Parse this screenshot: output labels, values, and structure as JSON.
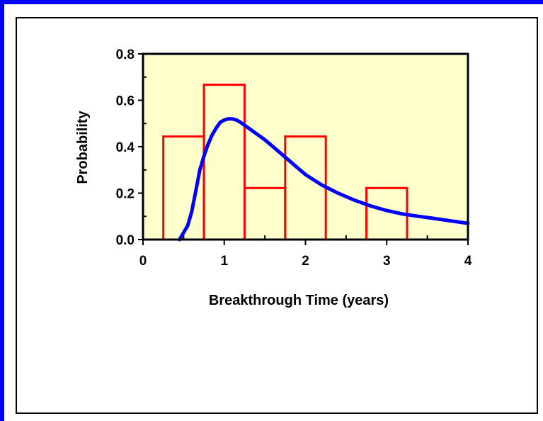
{
  "chart_data": {
    "type": "bar",
    "title": "",
    "xlabel": "Breakthrough Time (years)",
    "ylabel": "Probability",
    "xlim": [
      0,
      4
    ],
    "ylim": [
      0,
      0.8
    ],
    "x_ticks": [
      "0",
      "1",
      "2",
      "3",
      "4"
    ],
    "y_ticks": [
      "0.0",
      "0.2",
      "0.4",
      "0.6",
      "0.8"
    ],
    "grid": false,
    "legend": "none",
    "plot_background": "#ffffcc",
    "histogram": {
      "color": "#ff0000",
      "bins": [
        {
          "x0": 0.25,
          "x1": 0.75,
          "value": 0.444
        },
        {
          "x0": 0.75,
          "x1": 1.25,
          "value": 0.667
        },
        {
          "x0": 1.25,
          "x1": 1.75,
          "value": 0.222
        },
        {
          "x0": 1.75,
          "x1": 2.25,
          "value": 0.444
        },
        {
          "x0": 2.25,
          "x1": 2.75,
          "value": 0.0
        },
        {
          "x0": 2.75,
          "x1": 3.25,
          "value": 0.222
        }
      ]
    },
    "curve": {
      "color": "#0000ff",
      "x": [
        0.45,
        0.55,
        0.6,
        0.65,
        0.7,
        0.75,
        0.8,
        0.85,
        0.9,
        0.95,
        1.0,
        1.05,
        1.1,
        1.15,
        1.2,
        1.3,
        1.4,
        1.5,
        1.6,
        1.7,
        1.8,
        1.9,
        2.0,
        2.2,
        2.4,
        2.6,
        2.8,
        3.0,
        3.2,
        3.4,
        3.6,
        3.8,
        4.0
      ],
      "y": [
        0.0,
        0.06,
        0.12,
        0.21,
        0.3,
        0.36,
        0.41,
        0.45,
        0.48,
        0.505,
        0.515,
        0.52,
        0.52,
        0.515,
        0.505,
        0.48,
        0.455,
        0.43,
        0.4,
        0.37,
        0.34,
        0.31,
        0.28,
        0.235,
        0.2,
        0.17,
        0.145,
        0.125,
        0.11,
        0.1,
        0.09,
        0.08,
        0.07
      ]
    }
  }
}
